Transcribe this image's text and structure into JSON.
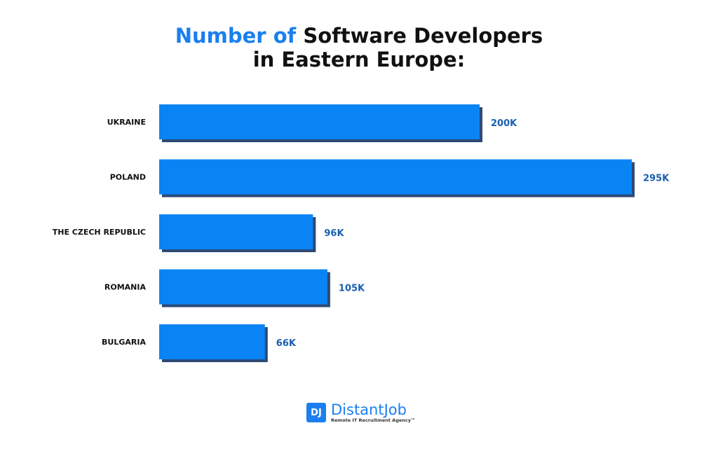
{
  "title": {
    "accent": "Number of",
    "rest_line1": " Software Developers",
    "line2": "in Eastern Europe:"
  },
  "colors": {
    "bar": "#0a84f5",
    "shadow": "#2d4a75",
    "value_label": "#1a5fb0",
    "accent": "#1a7ff0"
  },
  "chart_data": {
    "type": "bar",
    "orientation": "horizontal",
    "categories": [
      "UKRAINE",
      "POLAND",
      "THE CZECH REPUBLIC",
      "ROMANIA",
      "BULGARIA"
    ],
    "values": [
      200,
      295,
      96,
      105,
      66
    ],
    "data_labels": [
      "200K",
      "295K",
      "96K",
      "105K",
      "66K"
    ],
    "unit": "K",
    "xlim": [
      0,
      300
    ],
    "grid": false
  },
  "logo": {
    "mark": "DJ",
    "name": "DistantJob",
    "tagline": "Remote IT Recruitment Agency™"
  }
}
